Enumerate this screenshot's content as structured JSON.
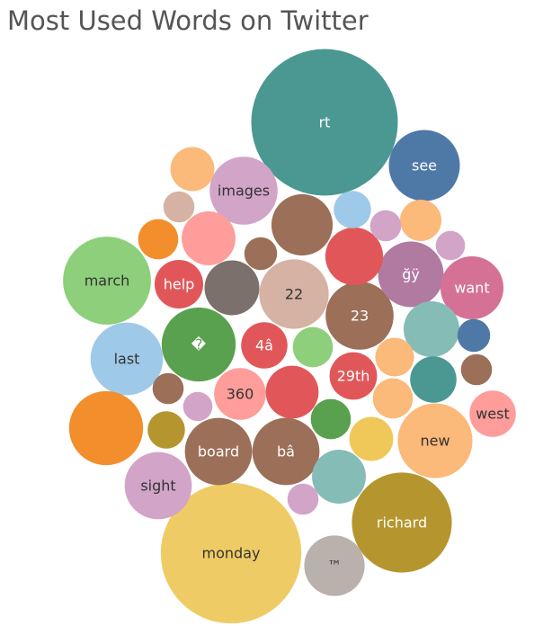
{
  "chart_data": {
    "type": "bubble",
    "title": "Most Used Words on Twitter",
    "points": [
      {
        "label": "rt",
        "size": 100,
        "color": "#4a9891"
      },
      {
        "label": "monday",
        "size": 92,
        "color": "#efcb65"
      },
      {
        "label": "richard",
        "size": 46.5,
        "color": "#b5962e"
      },
      {
        "label": "march",
        "size": 36,
        "color": "#8dcf7a"
      },
      {
        "label": "new",
        "size": 26,
        "color": "#fbb97a"
      },
      {
        "label": "last",
        "size": 24.5,
        "color": "#9fc9e8"
      },
      {
        "label": "see",
        "size": 23.5,
        "color": "#4e79a7"
      },
      {
        "label": "images",
        "size": 21.5,
        "color": "#d2a4c8"
      },
      {
        "label": "sight",
        "size": 21,
        "color": "#d2a4c8"
      },
      {
        "label": "board",
        "size": 21,
        "color": "#9b6f58"
      },
      {
        "label": "bâ",
        "size": 21,
        "color": "#9b6f58"
      },
      {
        "label": "�",
        "size": 25.5,
        "color": "#59a14f"
      },
      {
        "label": "22",
        "size": 22.5,
        "color": "#d5b2a4"
      },
      {
        "label": "23",
        "size": 21.5,
        "color": "#9b6f58"
      },
      {
        "label": "ğÿ",
        "size": 20,
        "color": "#b07aa1"
      },
      {
        "label": "want",
        "size": 18.5,
        "color": "#d57195"
      },
      {
        "label": "™",
        "size": 17,
        "color": "#bab0ac"
      },
      {
        "label": "360",
        "size": 12.5,
        "color": "#fe9d9a"
      },
      {
        "label": "help",
        "size": 11,
        "color": "#e15759"
      },
      {
        "label": "29th",
        "size": 10.5,
        "color": "#e15759"
      },
      {
        "label": "4â",
        "size": 10,
        "color": "#e15759"
      },
      {
        "label": "west",
        "size": 10,
        "color": "#fe9d9a"
      },
      {
        "label": "",
        "size": 25.5,
        "color": "#f28e2b"
      },
      {
        "label": "",
        "size": 17.5,
        "color": "#9b6f58"
      },
      {
        "label": "",
        "size": 15.5,
        "color": "#e15759"
      },
      {
        "label": "",
        "size": 14.5,
        "color": "#86bcb6"
      },
      {
        "label": "",
        "size": 14,
        "color": "#7c706c"
      },
      {
        "label": "",
        "size": 13.5,
        "color": "#86bcb6"
      },
      {
        "label": "",
        "size": 13.5,
        "color": "#fe9d9a"
      },
      {
        "label": "",
        "size": 13,
        "color": "#e15759"
      },
      {
        "label": "",
        "size": 10,
        "color": "#4a9891"
      },
      {
        "label": "",
        "size": 9,
        "color": "#f0c85a"
      },
      {
        "label": "",
        "size": 9,
        "color": "#fbb97a"
      },
      {
        "label": "",
        "size": 8,
        "color": "#fbb97a"
      },
      {
        "label": "",
        "size": 7.5,
        "color": "#59a14f"
      },
      {
        "label": "",
        "size": 7.5,
        "color": "#8dcf7a"
      },
      {
        "label": "",
        "size": 7.5,
        "color": "#fbb97a"
      },
      {
        "label": "",
        "size": 7.5,
        "color": "#f28e2b"
      },
      {
        "label": "",
        "size": 7,
        "color": "#fbb97a"
      },
      {
        "label": "",
        "size": 6.5,
        "color": "#b5962e"
      },
      {
        "label": "",
        "size": 6.5,
        "color": "#9fc9e8"
      },
      {
        "label": "",
        "size": 5,
        "color": "#9b6f58"
      },
      {
        "label": "",
        "size": 5,
        "color": "#4e79a7"
      },
      {
        "label": "",
        "size": 4.5,
        "color": "#d5b2a4"
      },
      {
        "label": "",
        "size": 4.5,
        "color": "#d2a4c8"
      },
      {
        "label": "",
        "size": 4.5,
        "color": "#9b6f58"
      },
      {
        "label": "",
        "size": 4.5,
        "color": "#d2a4c8"
      },
      {
        "label": "",
        "size": 4.5,
        "color": "#9b6f58"
      },
      {
        "label": "",
        "size": 4,
        "color": "#d2a4c8"
      },
      {
        "label": "",
        "size": 4,
        "color": "#d2a4c8"
      }
    ]
  }
}
